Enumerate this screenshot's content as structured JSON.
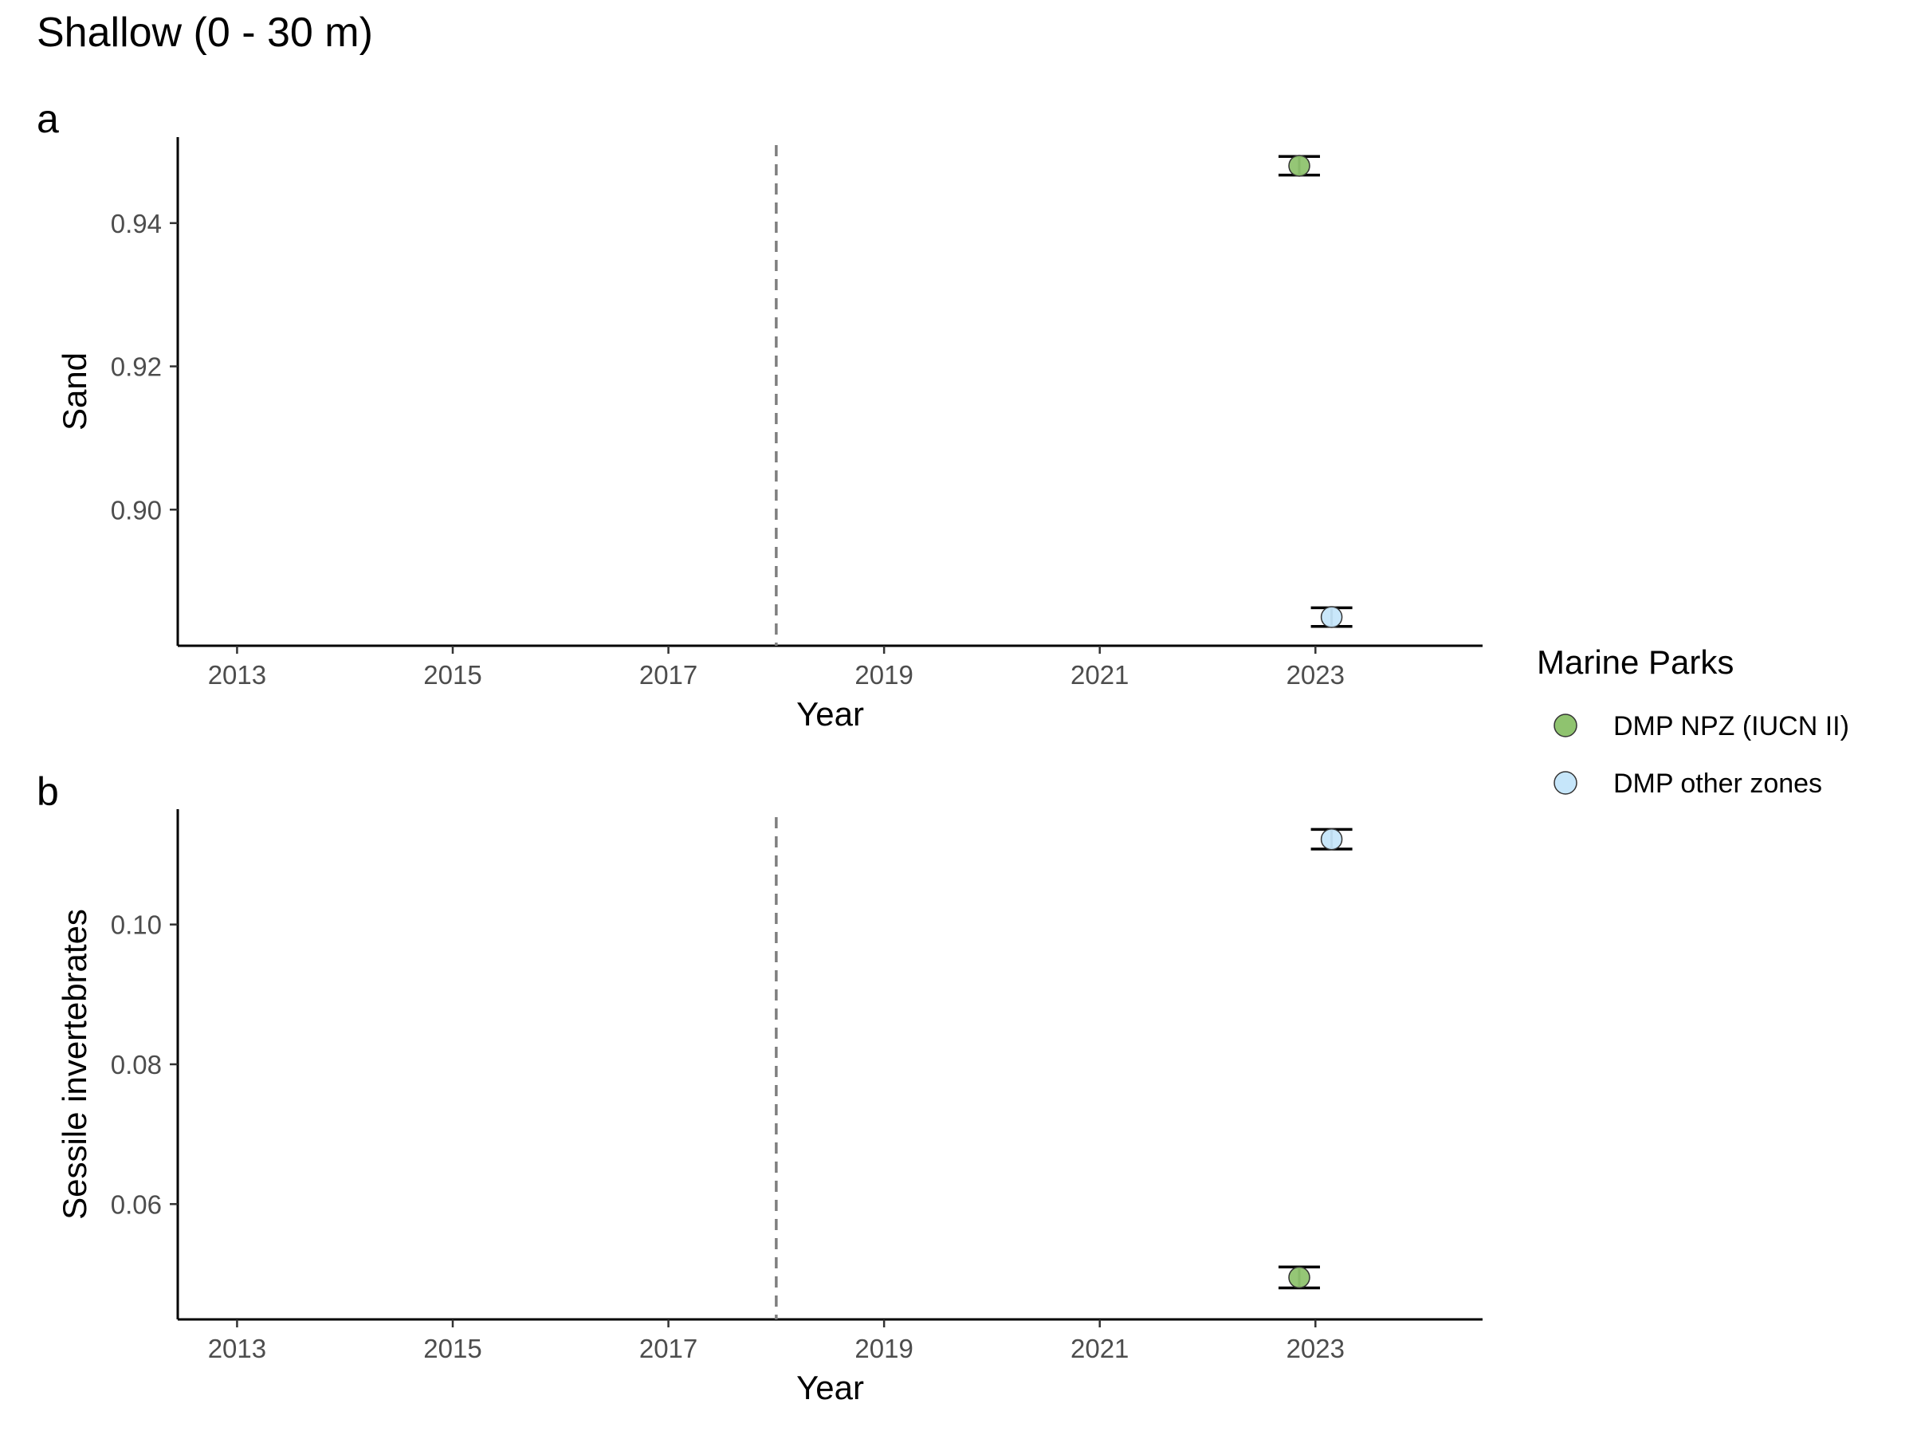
{
  "figure_title": "Shallow (0 - 30 m)",
  "legend": {
    "title": "Marine Parks",
    "items": [
      {
        "label": "DMP NPZ (IUCN II)",
        "color": "#8fc36f"
      },
      {
        "label": "DMP other zones",
        "color": "#c6e6fa"
      }
    ]
  },
  "chart_data": [
    {
      "type": "scatter",
      "panel": "a",
      "xlabel": "Year",
      "ylabel": "Sand",
      "xlim": [
        2012.45,
        2024.55
      ],
      "ylim": [
        0.881,
        0.952
      ],
      "xticks": [
        2013,
        2015,
        2017,
        2019,
        2021,
        2023
      ],
      "yticks": [
        0.9,
        0.92,
        0.94
      ],
      "ytick_labels": [
        "0.90",
        "0.92",
        "0.94"
      ],
      "reference_line_x": 2018,
      "series": [
        {
          "name": "DMP NPZ (IUCN II)",
          "color": "#8fc36f",
          "points": [
            {
              "x": 2022.85,
              "y": 0.948,
              "ymin": 0.9467,
              "ymax": 0.9493
            }
          ]
        },
        {
          "name": "DMP other zones",
          "color": "#c6e6fa",
          "points": [
            {
              "x": 2023.15,
              "y": 0.885,
              "ymin": 0.8837,
              "ymax": 0.8863
            }
          ]
        }
      ]
    },
    {
      "type": "scatter",
      "panel": "b",
      "xlabel": "Year",
      "ylabel": "Sessile invertebrates",
      "xlim": [
        2012.45,
        2024.55
      ],
      "ylim": [
        0.0435,
        0.1165
      ],
      "xticks": [
        2013,
        2015,
        2017,
        2019,
        2021,
        2023
      ],
      "yticks": [
        0.06,
        0.08,
        0.1
      ],
      "ytick_labels": [
        "0.06",
        "0.08",
        "0.10"
      ],
      "reference_line_x": 2018,
      "series": [
        {
          "name": "DMP NPZ (IUCN II)",
          "color": "#8fc36f",
          "points": [
            {
              "x": 2022.85,
              "y": 0.0495,
              "ymin": 0.048,
              "ymax": 0.051
            }
          ]
        },
        {
          "name": "DMP other zones",
          "color": "#c6e6fa",
          "points": [
            {
              "x": 2023.15,
              "y": 0.1122,
              "ymin": 0.1108,
              "ymax": 0.1136
            }
          ]
        }
      ]
    }
  ]
}
